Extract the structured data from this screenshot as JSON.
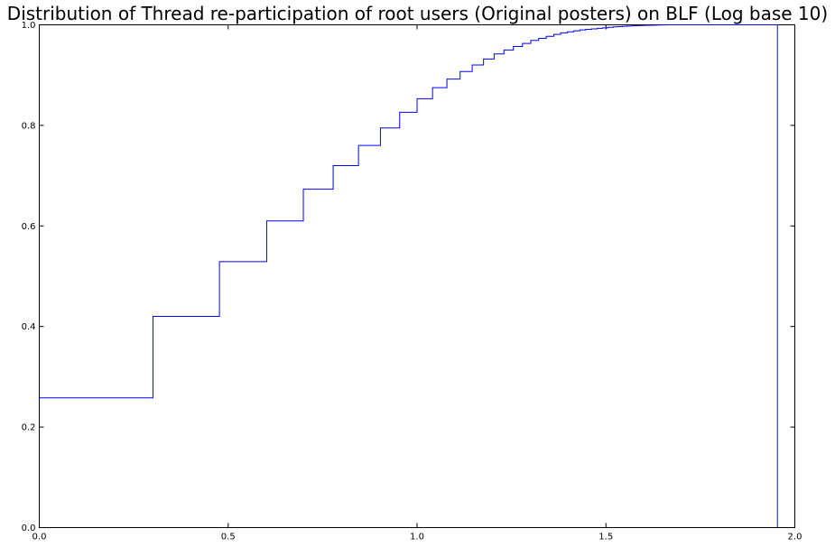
{
  "chart_data": {
    "type": "line",
    "title": "Distribution of Thread re-participation of root users (Original posters) on BLF (Log base 10)",
    "xlabel": "",
    "ylabel": "",
    "xlim": [
      0.0,
      2.0
    ],
    "ylim": [
      0.0,
      1.0
    ],
    "x_ticks": [
      "0.0",
      "0.5",
      "1.0",
      "1.5",
      "2.0"
    ],
    "y_ticks": [
      "0.0",
      "0.2",
      "0.4",
      "0.6",
      "0.8",
      "1.0"
    ],
    "grid": false,
    "legend": "none",
    "series": [
      {
        "style": "step-post",
        "color": "#0000ff",
        "x": [
          0.0,
          0.301,
          0.477,
          0.602,
          0.699,
          0.778,
          0.845,
          0.903,
          0.954,
          1.0,
          1.041,
          1.079,
          1.114,
          1.146,
          1.176,
          1.204,
          1.23,
          1.255,
          1.279,
          1.301,
          1.322,
          1.342,
          1.362,
          1.38,
          1.398,
          1.415,
          1.431,
          1.447,
          1.462,
          1.477,
          1.491,
          1.505,
          1.519,
          1.531,
          1.544,
          1.556,
          1.568,
          1.58,
          1.591,
          1.602,
          1.613,
          1.623,
          1.633,
          1.643,
          1.653,
          1.663,
          1.672,
          1.681,
          1.69,
          1.699,
          1.954,
          1.954
        ],
        "y": [
          0.258,
          0.42,
          0.529,
          0.61,
          0.673,
          0.72,
          0.76,
          0.795,
          0.826,
          0.853,
          0.875,
          0.892,
          0.907,
          0.92,
          0.932,
          0.942,
          0.95,
          0.957,
          0.963,
          0.969,
          0.973,
          0.977,
          0.981,
          0.984,
          0.986,
          0.988,
          0.99,
          0.991,
          0.992,
          0.993,
          0.994,
          0.995,
          0.996,
          0.9965,
          0.997,
          0.9975,
          0.998,
          0.9984,
          0.9987,
          0.999,
          0.9992,
          0.9994,
          0.9996,
          0.9997,
          0.9998,
          0.9999,
          0.99995,
          1.0,
          1.0,
          1.0,
          1.0,
          0.0
        ]
      }
    ]
  }
}
